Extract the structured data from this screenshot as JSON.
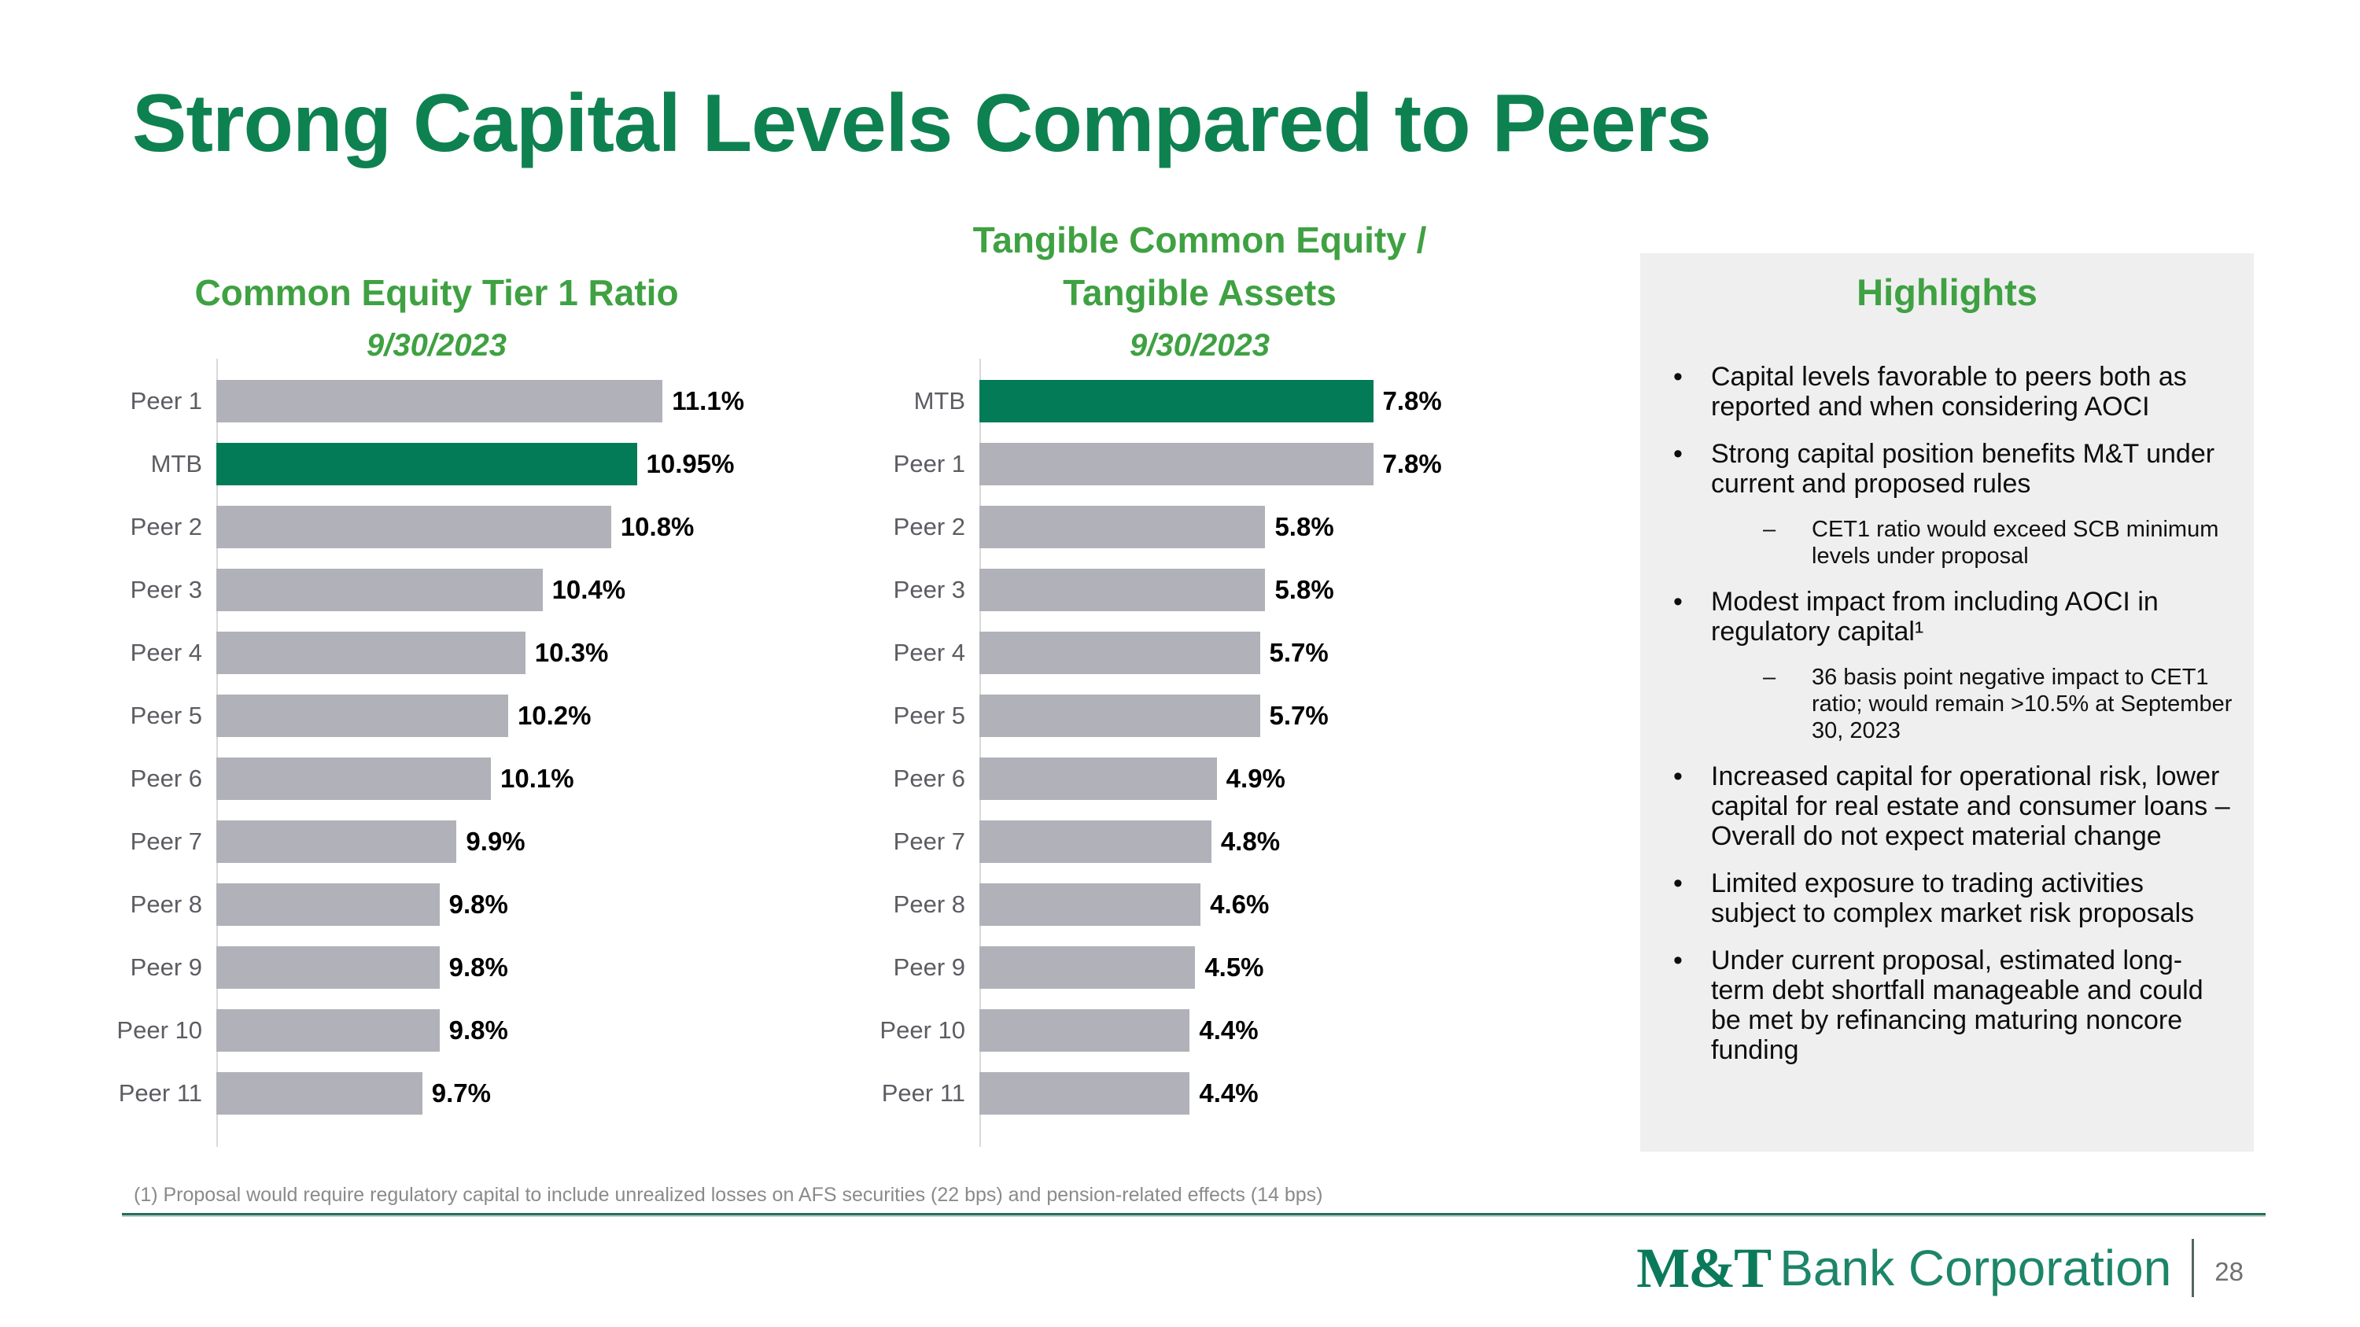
{
  "slide": {
    "title": "Strong Capital Levels Compared to Peers",
    "footnote": "(1) Proposal would require regulatory capital to include unrealized losses on AFS securities (22 bps) and pension-related effects (14 bps)",
    "page_number": "28",
    "logo": {
      "mt": "M&T",
      "rest": "Bank Corporation"
    }
  },
  "highlights": {
    "title": "Highlights",
    "bullets": [
      {
        "level": 1,
        "text": "Capital levels favorable to peers both as reported and when considering AOCI"
      },
      {
        "level": 1,
        "text": "Strong capital position benefits M&T under current and proposed rules"
      },
      {
        "level": 2,
        "text": "CET1 ratio would exceed SCB minimum levels under proposal"
      },
      {
        "level": 1,
        "text": "Modest impact from including AOCI in regulatory capital¹"
      },
      {
        "level": 2,
        "text": "36 basis point negative impact to CET1 ratio; would remain >10.5% at September 30, 2023"
      },
      {
        "level": 1,
        "text": "Increased capital for operational risk, lower capital for real estate and consumer loans – Overall do not expect material change"
      },
      {
        "level": 1,
        "text": "Limited exposure to trading activities subject to complex market risk proposals"
      },
      {
        "level": 1,
        "text": "Under current proposal, estimated long-term debt shortfall manageable and could be met by refinancing maturing noncore funding"
      }
    ]
  },
  "chart_data": [
    {
      "type": "bar",
      "orientation": "horizontal",
      "title": "Common Equity Tier 1 Ratio",
      "subtitle": "9/30/2023",
      "categories": [
        "Peer 1",
        "MTB",
        "Peer 2",
        "Peer 3",
        "Peer 4",
        "Peer 5",
        "Peer 6",
        "Peer 7",
        "Peer 8",
        "Peer 9",
        "Peer 10",
        "Peer 11"
      ],
      "values": [
        11.1,
        10.95,
        10.8,
        10.4,
        10.3,
        10.2,
        10.1,
        9.9,
        9.8,
        9.8,
        9.8,
        9.7
      ],
      "labels": [
        "11.1%",
        "10.95%",
        "10.8%",
        "10.4%",
        "10.3%",
        "10.2%",
        "10.1%",
        "9.9%",
        "9.8%",
        "9.8%",
        "9.8%",
        "9.7%"
      ],
      "highlight_category": "MTB",
      "axis_min": 8.5,
      "axis_max": 11.8,
      "bar_color": "#b1b1b9",
      "highlight_color": "#027b56",
      "grid": false,
      "legend": false,
      "data_labels": true
    },
    {
      "type": "bar",
      "orientation": "horizontal",
      "title": "Tangible Common Equity / Tangible Assets",
      "title_lines": [
        "Tangible Common Equity /",
        "Tangible Assets"
      ],
      "subtitle": "9/30/2023",
      "categories": [
        "MTB",
        "Peer 1",
        "Peer 2",
        "Peer 3",
        "Peer 4",
        "Peer 5",
        "Peer 6",
        "Peer 7",
        "Peer 8",
        "Peer 9",
        "Peer 10",
        "Peer 11"
      ],
      "values": [
        7.8,
        7.8,
        5.8,
        5.8,
        5.7,
        5.7,
        4.9,
        4.8,
        4.6,
        4.5,
        4.4,
        4.4
      ],
      "labels": [
        "7.8%",
        "7.8%",
        "5.8%",
        "5.8%",
        "5.7%",
        "5.7%",
        "4.9%",
        "4.8%",
        "4.6%",
        "4.5%",
        "4.4%",
        "4.4%"
      ],
      "highlight_category": "MTB",
      "axis_min": 0.5,
      "axis_max": 11.0,
      "bar_color": "#b1b1b9",
      "highlight_color": "#027b56",
      "grid": false,
      "legend": false,
      "data_labels": true
    }
  ],
  "colors": {
    "title_green": "#0e8150",
    "accent_green": "#3fa142",
    "brand_green_dark": "#027b56",
    "bar_gray": "#b1b1b9",
    "peer_label_gray": "#5c5c63",
    "panel_bg": "#efeff0",
    "footnote_gray": "#8a8a8a",
    "divider_green": "#2a6c5c"
  }
}
